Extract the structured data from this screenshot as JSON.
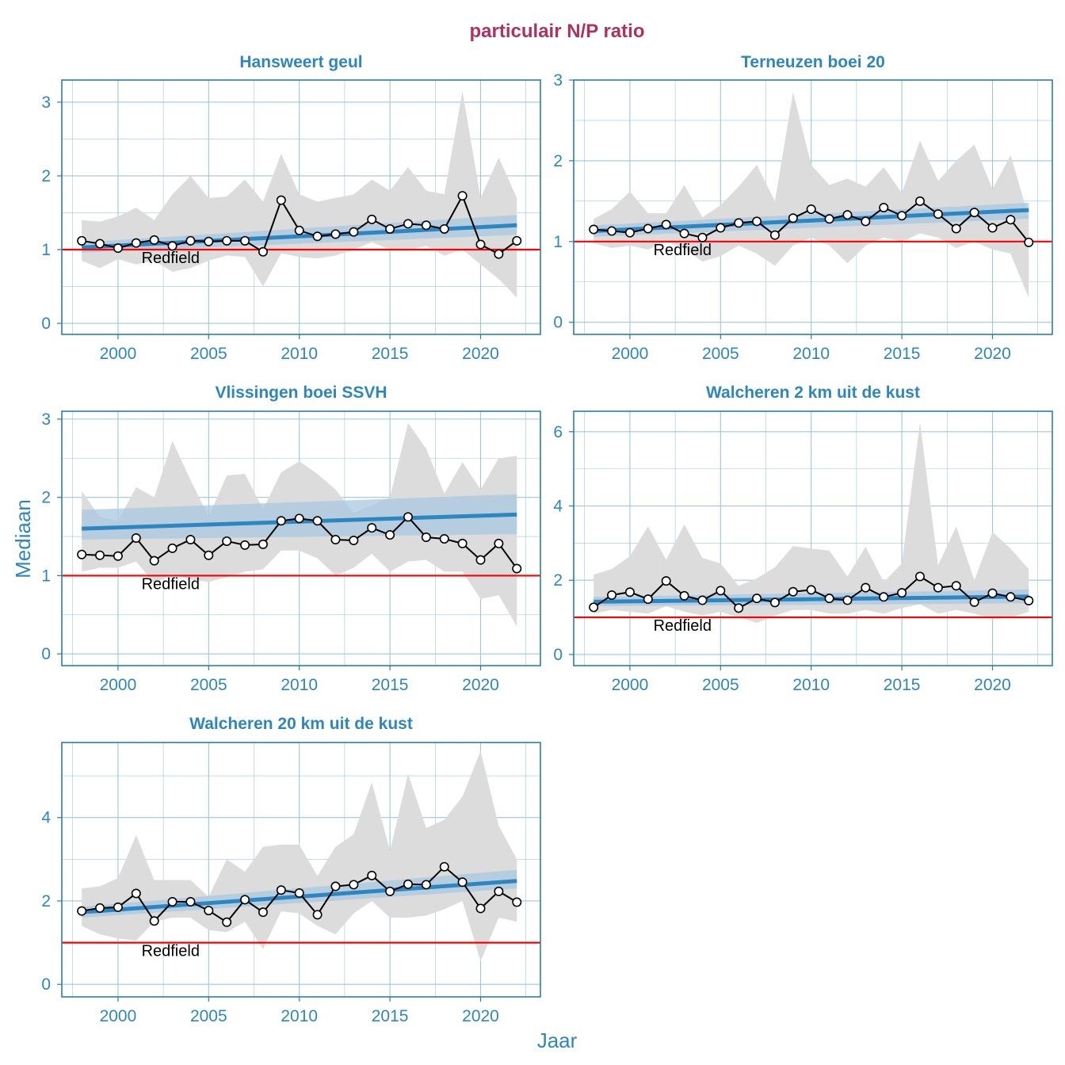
{
  "figure": {
    "title": "particulair N/P ratio",
    "xlabel": "Jaar",
    "ylabel": "Mediaan",
    "reference_label": "Redfield",
    "colors": {
      "title": "#B03060",
      "axis_text": "#2E86C1",
      "panel_border": "#2A7FA8",
      "grid": "#9CC6E0",
      "ribbon": "#DCDCDC",
      "trend": "#2E86C1",
      "trend_band": "#A9C8E0",
      "reference": "#FF0000",
      "series": "#000000"
    }
  },
  "chart_data": [
    {
      "type": "line",
      "title": "Hansweert geul",
      "xlim": [
        1996.9,
        2023.3
      ],
      "ylim": [
        -0.15,
        3.3
      ],
      "xticks": [
        2000,
        2005,
        2010,
        2015,
        2020
      ],
      "yticks": [
        0,
        1,
        2,
        3
      ],
      "reference": 1,
      "x": [
        1998,
        1999,
        2000,
        2001,
        2002,
        2003,
        2004,
        2005,
        2006,
        2007,
        2008,
        2009,
        2010,
        2011,
        2012,
        2013,
        2014,
        2015,
        2016,
        2017,
        2018,
        2019,
        2020,
        2021,
        2022
      ],
      "median": [
        1.12,
        1.08,
        1.02,
        1.09,
        1.13,
        1.05,
        1.12,
        1.11,
        1.12,
        1.12,
        0.97,
        1.67,
        1.26,
        1.18,
        1.21,
        1.24,
        1.41,
        1.28,
        1.35,
        1.33,
        1.28,
        1.73,
        1.07,
        0.94,
        1.12
      ],
      "lower": [
        0.85,
        0.75,
        0.87,
        0.8,
        0.85,
        0.7,
        0.75,
        0.85,
        0.92,
        0.9,
        0.5,
        0.95,
        0.9,
        0.88,
        0.92,
        1.0,
        1.1,
        1.0,
        1.0,
        1.05,
        0.92,
        1.0,
        0.8,
        0.6,
        0.35
      ],
      "upper": [
        1.4,
        1.38,
        1.45,
        1.57,
        1.4,
        1.75,
        2.0,
        1.7,
        1.72,
        1.95,
        1.65,
        2.3,
        1.75,
        1.65,
        1.7,
        1.75,
        1.95,
        1.8,
        2.12,
        1.8,
        1.75,
        3.15,
        1.7,
        2.25,
        1.7
      ],
      "trend": [
        1.03,
        1.33
      ],
      "trend_band_lo": [
        0.96,
        1.2
      ],
      "trend_band_hi": [
        1.1,
        1.47
      ]
    },
    {
      "type": "line",
      "title": "Terneuzen boei 20",
      "xlim": [
        1996.9,
        2023.3
      ],
      "ylim": [
        -0.15,
        3.0
      ],
      "xticks": [
        2000,
        2005,
        2010,
        2015,
        2020
      ],
      "yticks": [
        0,
        1,
        2,
        3
      ],
      "reference": 1,
      "x": [
        1998,
        1999,
        2000,
        2001,
        2002,
        2003,
        2004,
        2005,
        2006,
        2007,
        2008,
        2009,
        2010,
        2011,
        2012,
        2013,
        2014,
        2015,
        2016,
        2017,
        2018,
        2019,
        2020,
        2021,
        2022
      ],
      "median": [
        1.15,
        1.13,
        1.11,
        1.16,
        1.21,
        1.1,
        1.05,
        1.17,
        1.23,
        1.25,
        1.08,
        1.29,
        1.4,
        1.28,
        1.33,
        1.25,
        1.42,
        1.32,
        1.5,
        1.34,
        1.16,
        1.36,
        1.17,
        1.27,
        0.99
      ],
      "lower": [
        0.98,
        0.92,
        0.95,
        0.9,
        1.0,
        0.92,
        0.75,
        0.82,
        0.95,
        0.85,
        0.7,
        0.95,
        1.05,
        0.95,
        0.73,
        0.95,
        1.05,
        1.0,
        1.1,
        1.05,
        0.92,
        1.0,
        0.9,
        0.85,
        0.3
      ],
      "upper": [
        1.28,
        1.4,
        1.62,
        1.35,
        1.35,
        1.7,
        1.3,
        1.45,
        1.68,
        1.95,
        1.5,
        2.85,
        1.95,
        1.7,
        1.78,
        1.68,
        1.92,
        1.6,
        2.25,
        1.75,
        2.0,
        2.2,
        1.65,
        2.07,
        1.3
      ],
      "trend": [
        1.13,
        1.39
      ],
      "trend_band_lo": [
        1.06,
        1.28
      ],
      "trend_band_hi": [
        1.2,
        1.48
      ]
    },
    {
      "type": "line",
      "title": "Vlissingen boei SSVH",
      "xlim": [
        1996.9,
        2023.3
      ],
      "ylim": [
        -0.15,
        3.1
      ],
      "xticks": [
        2000,
        2005,
        2010,
        2015,
        2020
      ],
      "yticks": [
        0,
        1,
        2,
        3
      ],
      "reference": 1,
      "x": [
        1998,
        1999,
        2000,
        2001,
        2002,
        2003,
        2004,
        2005,
        2006,
        2007,
        2008,
        2009,
        2010,
        2011,
        2012,
        2013,
        2014,
        2015,
        2016,
        2017,
        2018,
        2019,
        2020,
        2021,
        2022
      ],
      "median": [
        1.27,
        1.26,
        1.25,
        1.48,
        1.19,
        1.35,
        1.46,
        1.26,
        1.44,
        1.39,
        1.4,
        1.7,
        1.73,
        1.7,
        1.46,
        1.45,
        1.61,
        1.52,
        1.75,
        1.49,
        1.47,
        1.41,
        1.2,
        1.41,
        1.09
      ],
      "lower": [
        1.05,
        1.1,
        1.1,
        1.18,
        0.9,
        1.02,
        0.95,
        0.92,
        0.98,
        1.05,
        1.08,
        1.32,
        1.32,
        1.22,
        1.0,
        1.1,
        1.28,
        1.05,
        1.18,
        1.2,
        1.05,
        1.05,
        0.7,
        0.75,
        0.35
      ],
      "upper": [
        2.08,
        1.75,
        1.7,
        2.13,
        2.0,
        2.72,
        2.22,
        1.75,
        2.28,
        2.3,
        1.85,
        2.32,
        2.46,
        2.3,
        2.1,
        1.8,
        1.9,
        2.0,
        2.95,
        2.62,
        2.05,
        2.45,
        2.1,
        2.5,
        2.53
      ],
      "trend": [
        1.6,
        1.78
      ],
      "trend_band_lo": [
        1.46,
        1.53
      ],
      "trend_band_hi": [
        1.84,
        2.04
      ]
    },
    {
      "type": "line",
      "title": "Walcheren 2 km uit de kust",
      "xlim": [
        1996.9,
        2023.3
      ],
      "ylim": [
        -0.3,
        6.55
      ],
      "xticks": [
        2000,
        2005,
        2010,
        2015,
        2020
      ],
      "yticks": [
        0,
        2,
        4,
        6
      ],
      "reference": 1,
      "x": [
        1998,
        1999,
        2000,
        2001,
        2002,
        2003,
        2004,
        2005,
        2006,
        2007,
        2008,
        2009,
        2010,
        2011,
        2012,
        2013,
        2014,
        2015,
        2016,
        2017,
        2018,
        2019,
        2020,
        2021,
        2022
      ],
      "median": [
        1.27,
        1.6,
        1.68,
        1.49,
        1.98,
        1.58,
        1.46,
        1.72,
        1.25,
        1.51,
        1.4,
        1.69,
        1.74,
        1.51,
        1.46,
        1.8,
        1.55,
        1.66,
        2.1,
        1.8,
        1.85,
        1.41,
        1.65,
        1.55,
        1.45
      ],
      "lower": [
        1.1,
        1.2,
        1.15,
        1.1,
        1.3,
        1.15,
        1.05,
        1.15,
        1.0,
        0.85,
        1.05,
        1.2,
        1.2,
        1.1,
        1.1,
        1.2,
        1.1,
        1.25,
        1.35,
        1.1,
        1.2,
        1.1,
        0.95,
        1.0,
        1.15
      ],
      "upper": [
        2.15,
        2.3,
        2.65,
        3.45,
        2.55,
        3.5,
        2.6,
        2.45,
        1.85,
        2.05,
        2.35,
        2.92,
        2.85,
        2.8,
        2.1,
        2.9,
        1.95,
        2.45,
        6.25,
        2.4,
        3.45,
        2.0,
        3.3,
        2.85,
        2.3
      ],
      "trend": [
        1.42,
        1.56
      ],
      "trend_band_lo": [
        1.3,
        1.38
      ],
      "trend_band_hi": [
        1.55,
        1.75
      ]
    },
    {
      "type": "line",
      "title": "Walcheren 20 km uit de kust",
      "xlim": [
        1996.9,
        2023.3
      ],
      "ylim": [
        -0.3,
        5.8
      ],
      "xticks": [
        2000,
        2005,
        2010,
        2015,
        2020
      ],
      "yticks": [
        0,
        2,
        4
      ],
      "reference": 1,
      "x": [
        1998,
        1999,
        2000,
        2001,
        2002,
        2003,
        2004,
        2005,
        2006,
        2007,
        2008,
        2009,
        2010,
        2011,
        2012,
        2013,
        2014,
        2015,
        2016,
        2017,
        2018,
        2019,
        2020,
        2021,
        2022
      ],
      "median": [
        1.76,
        1.83,
        1.85,
        2.18,
        1.52,
        1.98,
        1.98,
        1.77,
        1.49,
        2.03,
        1.73,
        2.26,
        2.19,
        1.67,
        2.35,
        2.39,
        2.61,
        2.23,
        2.4,
        2.39,
        2.82,
        2.45,
        1.82,
        2.23,
        1.97
      ],
      "lower": [
        1.4,
        1.2,
        1.1,
        1.05,
        1.5,
        1.6,
        1.6,
        1.3,
        1.25,
        1.5,
        0.85,
        1.75,
        1.7,
        1.4,
        1.2,
        1.7,
        2.0,
        1.6,
        1.6,
        1.65,
        1.8,
        2.0,
        0.55,
        1.6,
        1.5
      ],
      "upper": [
        2.3,
        2.35,
        2.55,
        3.58,
        2.5,
        2.5,
        2.5,
        2.1,
        3.0,
        2.7,
        3.3,
        3.35,
        3.35,
        2.6,
        3.3,
        3.6,
        4.85,
        3.2,
        5.05,
        3.75,
        3.95,
        4.5,
        5.6,
        3.8,
        3.0
      ],
      "trend": [
        1.73,
        2.48
      ],
      "trend_band_lo": [
        1.6,
        2.3
      ],
      "trend_band_hi": [
        1.86,
        2.75
      ]
    }
  ]
}
